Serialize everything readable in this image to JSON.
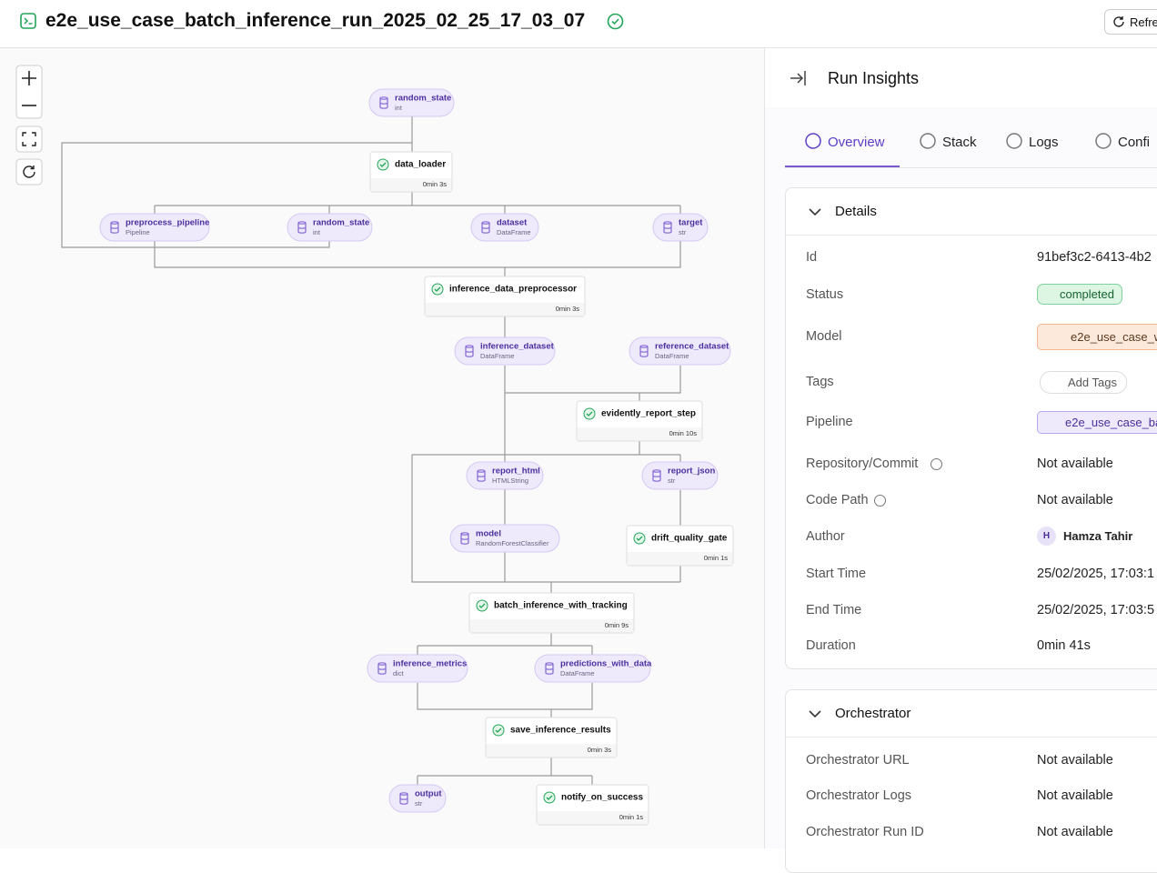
{
  "header": {
    "title": "e2e_use_case_batch_inference_run_2025_02_25_17_03_07",
    "refresh_label": "Refre"
  },
  "dag": {
    "nodes": [
      {
        "kind": "artifact",
        "name": "random_state",
        "sub": "int"
      },
      {
        "kind": "step",
        "name": "data_loader",
        "sub": "0min 3s"
      },
      {
        "kind": "artifact",
        "name": "preprocess_pipeline",
        "sub": "Pipeline"
      },
      {
        "kind": "artifact",
        "name": "random_state",
        "sub": "int"
      },
      {
        "kind": "artifact",
        "name": "dataset",
        "sub": "DataFrame"
      },
      {
        "kind": "artifact",
        "name": "target",
        "sub": "str"
      },
      {
        "kind": "step",
        "name": "inference_data_preprocessor",
        "sub": "0min 3s"
      },
      {
        "kind": "artifact",
        "name": "inference_dataset",
        "sub": "DataFrame"
      },
      {
        "kind": "artifact",
        "name": "reference_dataset",
        "sub": "DataFrame"
      },
      {
        "kind": "step",
        "name": "evidently_report_step",
        "sub": "0min 10s"
      },
      {
        "kind": "artifact",
        "name": "report_html",
        "sub": "HTMLString"
      },
      {
        "kind": "artifact",
        "name": "report_json",
        "sub": "str"
      },
      {
        "kind": "artifact",
        "name": "model",
        "sub": "RandomForestClassifier"
      },
      {
        "kind": "step",
        "name": "drift_quality_gate",
        "sub": "0min 1s"
      },
      {
        "kind": "step",
        "name": "batch_inference_with_tracking",
        "sub": "0min 9s"
      },
      {
        "kind": "artifact",
        "name": "inference_metrics",
        "sub": "dict"
      },
      {
        "kind": "artifact",
        "name": "predictions_with_data",
        "sub": "DataFrame"
      },
      {
        "kind": "step",
        "name": "save_inference_results",
        "sub": "0min 3s"
      },
      {
        "kind": "artifact",
        "name": "output",
        "sub": "str"
      },
      {
        "kind": "step",
        "name": "notify_on_success",
        "sub": "0min 1s"
      }
    ]
  },
  "panel": {
    "title": "Run Insights",
    "tabs": [
      "Overview",
      "Stack",
      "Logs",
      "Confi"
    ],
    "details": {
      "title": "Details",
      "rows": [
        {
          "label": "Id",
          "value": "91bef3c2-6413-4b2"
        },
        {
          "label": "Status",
          "value": "completed"
        },
        {
          "label": "Model",
          "value": "e2e_use_case_w"
        },
        {
          "label": "Tags",
          "value": "Add Tags"
        },
        {
          "label": "Pipeline",
          "value": "e2e_use_case_ba"
        },
        {
          "label": "Repository/Commit",
          "value": "Not available"
        },
        {
          "label": "Code Path",
          "value": "Not available"
        },
        {
          "label": "Author",
          "avatar": "H",
          "value": "Hamza Tahir"
        },
        {
          "label": "Start Time",
          "value": "25/02/2025, 17:03:1"
        },
        {
          "label": "End Time",
          "value": "25/02/2025, 17:03:5"
        },
        {
          "label": "Duration",
          "value": "0min 41s"
        }
      ]
    },
    "orchestrator": {
      "title": "Orchestrator",
      "rows": [
        {
          "label": "Orchestrator URL",
          "value": "Not available"
        },
        {
          "label": "Orchestrator Logs",
          "value": "Not available"
        },
        {
          "label": "Orchestrator Run ID",
          "value": "Not available"
        }
      ]
    }
  }
}
